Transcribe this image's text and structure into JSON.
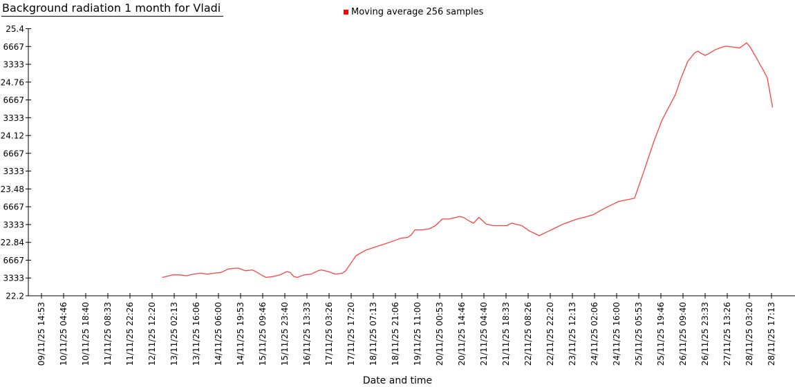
{
  "chart_data": {
    "type": "line",
    "title": "Background radiation 1 month for Vladi",
    "xlabel": "Date and time",
    "ylabel": "",
    "ylim": [
      22.2,
      25.4
    ],
    "xlim_labels": [
      "09/11/25 14:53",
      "28/11/25 17:13"
    ],
    "x_axis_span_hours": 458.33,
    "grid": false,
    "legend_position": "top-center",
    "legend_label": "Moving average 256 samples",
    "legend_swatch_color": "#ff0000",
    "y_ticks": [
      {
        "value": 25.4,
        "label": "25.4"
      },
      {
        "value": 25.18667,
        "label": "6667"
      },
      {
        "value": 24.97333,
        "label": "3333"
      },
      {
        "value": 24.76,
        "label": "24.76"
      },
      {
        "value": 24.54667,
        "label": "6667"
      },
      {
        "value": 24.33333,
        "label": "3333"
      },
      {
        "value": 24.12,
        "label": "24.12"
      },
      {
        "value": 23.90667,
        "label": "6667"
      },
      {
        "value": 23.69333,
        "label": "3333"
      },
      {
        "value": 23.48,
        "label": "23.48"
      },
      {
        "value": 23.26667,
        "label": "6667"
      },
      {
        "value": 23.05333,
        "label": "3333"
      },
      {
        "value": 22.84,
        "label": "22.84"
      },
      {
        "value": 22.62667,
        "label": "6667"
      },
      {
        "value": 22.41333,
        "label": "3333"
      },
      {
        "value": 22.2,
        "label": "22.2"
      }
    ],
    "x_tick_labels": [
      "09/11/25 14:53",
      "10/11/25 04:46",
      "10/11/25 18:40",
      "11/11/25 08:33",
      "11/11/25 22:26",
      "12/11/25 12:20",
      "13/11/25 02:13",
      "13/11/25 16:06",
      "14/11/25 06:00",
      "14/11/25 19:53",
      "15/11/25 09:46",
      "15/11/25 23:40",
      "16/11/25 13:33",
      "17/11/25 03:26",
      "17/11/25 17:20",
      "18/11/25 07:13",
      "18/11/25 21:06",
      "19/11/25 11:00",
      "20/11/25 00:53",
      "20/11/25 14:46",
      "21/11/25 04:40",
      "21/11/25 18:33",
      "22/11/25 08:26",
      "22/11/25 22:20",
      "23/11/25 12:13",
      "24/11/25 02:06",
      "24/11/25 16:00",
      "25/11/25 05:53",
      "25/11/25 19:46",
      "26/11/25 09:40",
      "26/11/25 23:33",
      "27/11/25 13:26",
      "28/11/25 03:20",
      "28/11/25 17:13"
    ],
    "series": [
      {
        "name": "Moving average 256 samples",
        "color": "#ff4040",
        "x_unit": "hours_from_first_tick",
        "points": [
          [
            76.0,
            22.42
          ],
          [
            82.5,
            22.45
          ],
          [
            86.8,
            22.45
          ],
          [
            91.1,
            22.44
          ],
          [
            95.5,
            22.46
          ],
          [
            99.8,
            22.47
          ],
          [
            104.2,
            22.46
          ],
          [
            108.5,
            22.47
          ],
          [
            112.8,
            22.48
          ],
          [
            117.2,
            22.52
          ],
          [
            121.5,
            22.53
          ],
          [
            123.7,
            22.53
          ],
          [
            128.0,
            22.5
          ],
          [
            132.4,
            22.51
          ],
          [
            134.5,
            22.49
          ],
          [
            138.9,
            22.44
          ],
          [
            141.0,
            22.42
          ],
          [
            145.4,
            22.43
          ],
          [
            149.7,
            22.45
          ],
          [
            154.1,
            22.49
          ],
          [
            156.2,
            22.48
          ],
          [
            158.4,
            22.43
          ],
          [
            160.6,
            22.42
          ],
          [
            164.9,
            22.45
          ],
          [
            169.3,
            22.46
          ],
          [
            173.6,
            22.5
          ],
          [
            175.8,
            22.51
          ],
          [
            180.1,
            22.49
          ],
          [
            184.5,
            22.46
          ],
          [
            188.8,
            22.47
          ],
          [
            191.0,
            22.5
          ],
          [
            197.5,
            22.68
          ],
          [
            204.0,
            22.75
          ],
          [
            210.5,
            22.79
          ],
          [
            217.0,
            22.83
          ],
          [
            221.4,
            22.86
          ],
          [
            225.7,
            22.89
          ],
          [
            230.0,
            22.9
          ],
          [
            232.2,
            22.93
          ],
          [
            234.4,
            22.99
          ],
          [
            238.7,
            22.99
          ],
          [
            243.1,
            23.0
          ],
          [
            247.4,
            23.04
          ],
          [
            251.7,
            23.12
          ],
          [
            256.1,
            23.12
          ],
          [
            260.4,
            23.14
          ],
          [
            262.6,
            23.15
          ],
          [
            264.8,
            23.14
          ],
          [
            269.1,
            23.09
          ],
          [
            271.3,
            23.07
          ],
          [
            274.7,
            23.14
          ],
          [
            279.1,
            23.06
          ],
          [
            283.4,
            23.04
          ],
          [
            287.7,
            23.04
          ],
          [
            292.1,
            23.04
          ],
          [
            295.1,
            23.07
          ],
          [
            301.6,
            23.04
          ],
          [
            306.0,
            22.98
          ],
          [
            312.5,
            22.92
          ],
          [
            316.8,
            22.96
          ],
          [
            321.2,
            23.0
          ],
          [
            327.7,
            23.06
          ],
          [
            332.0,
            23.09
          ],
          [
            336.4,
            23.12
          ],
          [
            340.7,
            23.14
          ],
          [
            346.3,
            23.17
          ],
          [
            353.7,
            23.25
          ],
          [
            362.4,
            23.33
          ],
          [
            370.2,
            23.36
          ],
          [
            372.4,
            23.37
          ],
          [
            378.9,
            23.73
          ],
          [
            384.1,
            24.03
          ],
          [
            389.7,
            24.31
          ],
          [
            398.0,
            24.61
          ],
          [
            401.4,
            24.8
          ],
          [
            405.8,
            25.01
          ],
          [
            410.1,
            25.11
          ],
          [
            412.3,
            25.13
          ],
          [
            414.5,
            25.1
          ],
          [
            416.7,
            25.08
          ],
          [
            418.8,
            25.1
          ],
          [
            423.2,
            25.15
          ],
          [
            427.5,
            25.18
          ],
          [
            429.7,
            25.19
          ],
          [
            434.0,
            25.18
          ],
          [
            438.4,
            25.17
          ],
          [
            442.7,
            25.23
          ],
          [
            444.9,
            25.18
          ],
          [
            447.0,
            25.11
          ],
          [
            449.2,
            25.04
          ],
          [
            451.4,
            24.96
          ],
          [
            453.6,
            24.89
          ],
          [
            455.7,
            24.81
          ],
          [
            459.0,
            24.46
          ]
        ]
      }
    ]
  }
}
